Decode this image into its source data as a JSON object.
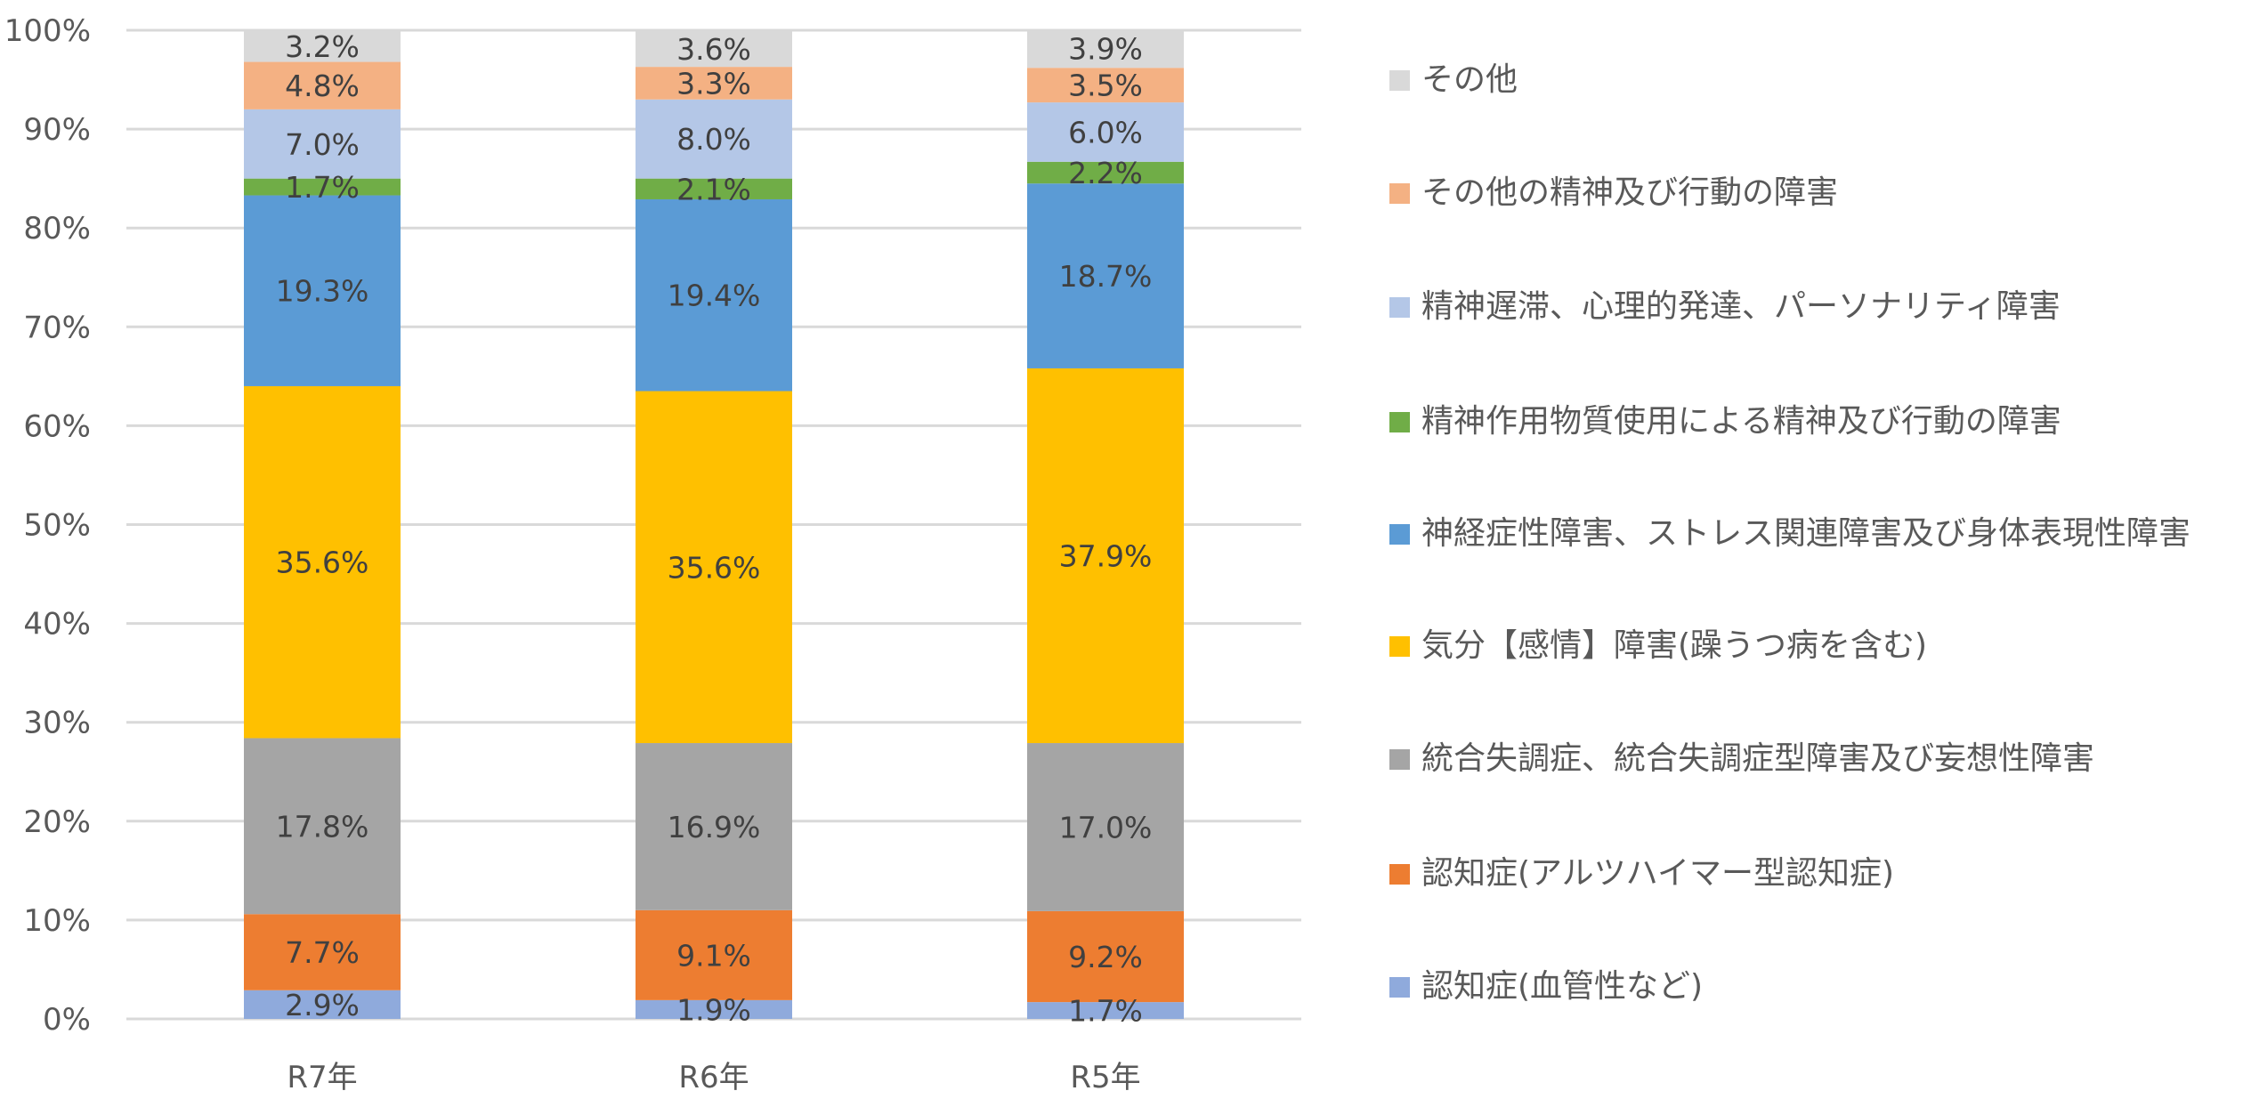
{
  "chart_data": {
    "type": "bar",
    "stacked": true,
    "percent_stacked": true,
    "title": "",
    "xlabel": "",
    "ylabel": "",
    "ylim": [
      0,
      100
    ],
    "yticks": [
      "0%",
      "10%",
      "20%",
      "30%",
      "40%",
      "50%",
      "60%",
      "70%",
      "80%",
      "90%",
      "100%"
    ],
    "grid": true,
    "legend_position": "right",
    "categories": [
      "R7年",
      "R6年",
      "R5年"
    ],
    "highlight_category_color": "#1BA1C8",
    "series": [
      {
        "name": "認知症(血管性など)",
        "color": "#8FAADC",
        "values": [
          2.9,
          1.9,
          1.7
        ],
        "labels": [
          "2.9%",
          "1.9%",
          "1.7%"
        ]
      },
      {
        "name": "認知症(アルツハイマー型認知症)",
        "color": "#ED7D31",
        "values": [
          7.7,
          9.1,
          9.2
        ],
        "labels": [
          "7.7%",
          "9.1%",
          "9.2%"
        ]
      },
      {
        "name": "統合失調症、統合失調症型障害及び妄想性障害",
        "color": "#A5A5A5",
        "values": [
          17.8,
          16.9,
          17.0
        ],
        "labels": [
          "17.8%",
          "16.9%",
          "17.0%"
        ]
      },
      {
        "name": "気分【感情】障害(躁うつ病を含む)",
        "color": "#FFC000",
        "values": [
          35.6,
          35.6,
          37.9
        ],
        "labels": [
          "35.6%",
          "35.6%",
          "37.9%"
        ]
      },
      {
        "name": "神経症性障害、ストレス関連障害及び身体表現性障害",
        "color": "#5B9BD5",
        "values": [
          19.3,
          19.4,
          18.7
        ],
        "labels": [
          "19.3%",
          "19.4%",
          "18.7%"
        ]
      },
      {
        "name": "精神作用物質使用による精神及び行動の障害",
        "color": "#70AD47",
        "values": [
          1.7,
          2.1,
          2.2
        ],
        "labels": [
          "1.7%",
          "2.1%",
          "2.2%"
        ]
      },
      {
        "name": "精神遅滞、心理的発達、パーソナリティ障害",
        "color": "#B4C7E7",
        "values": [
          7.0,
          8.0,
          6.0
        ],
        "labels": [
          "7.0%",
          "8.0%",
          "6.0%"
        ]
      },
      {
        "name": "その他の精神及び行動の障害",
        "color": "#F4B183",
        "values": [
          4.8,
          3.3,
          3.5
        ],
        "labels": [
          "4.8%",
          "3.3%",
          "3.5%"
        ]
      },
      {
        "name": "その他",
        "color": "#D9D9D9",
        "values": [
          3.2,
          3.6,
          3.9
        ],
        "labels": [
          "3.2%",
          "3.6%",
          "3.9%"
        ]
      }
    ]
  },
  "legend": {
    "items": [
      {
        "label": "その他",
        "color": "#D9D9D9"
      },
      {
        "label": "その他の精神及び行動の障害",
        "color": "#F4B183"
      },
      {
        "label": "精神遅滞、心理的発達、パーソナリティ障害",
        "color": "#B4C7E7"
      },
      {
        "label": "精神作用物質使用による精神及び行動の障害",
        "color": "#70AD47"
      },
      {
        "label": "神経症性障害、ストレス関連障害及び身体表現性障害",
        "color": "#5B9BD5"
      },
      {
        "label": "気分【感情】障害(躁うつ病を含む)",
        "color": "#FFC000"
      },
      {
        "label": "統合失調症、統合失調症型障害及び妄想性障害",
        "color": "#A5A5A5"
      },
      {
        "label": "認知症(アルツハイマー型認知症)",
        "color": "#ED7D31"
      },
      {
        "label": "認知症(血管性など)",
        "color": "#8FAADC"
      }
    ]
  }
}
